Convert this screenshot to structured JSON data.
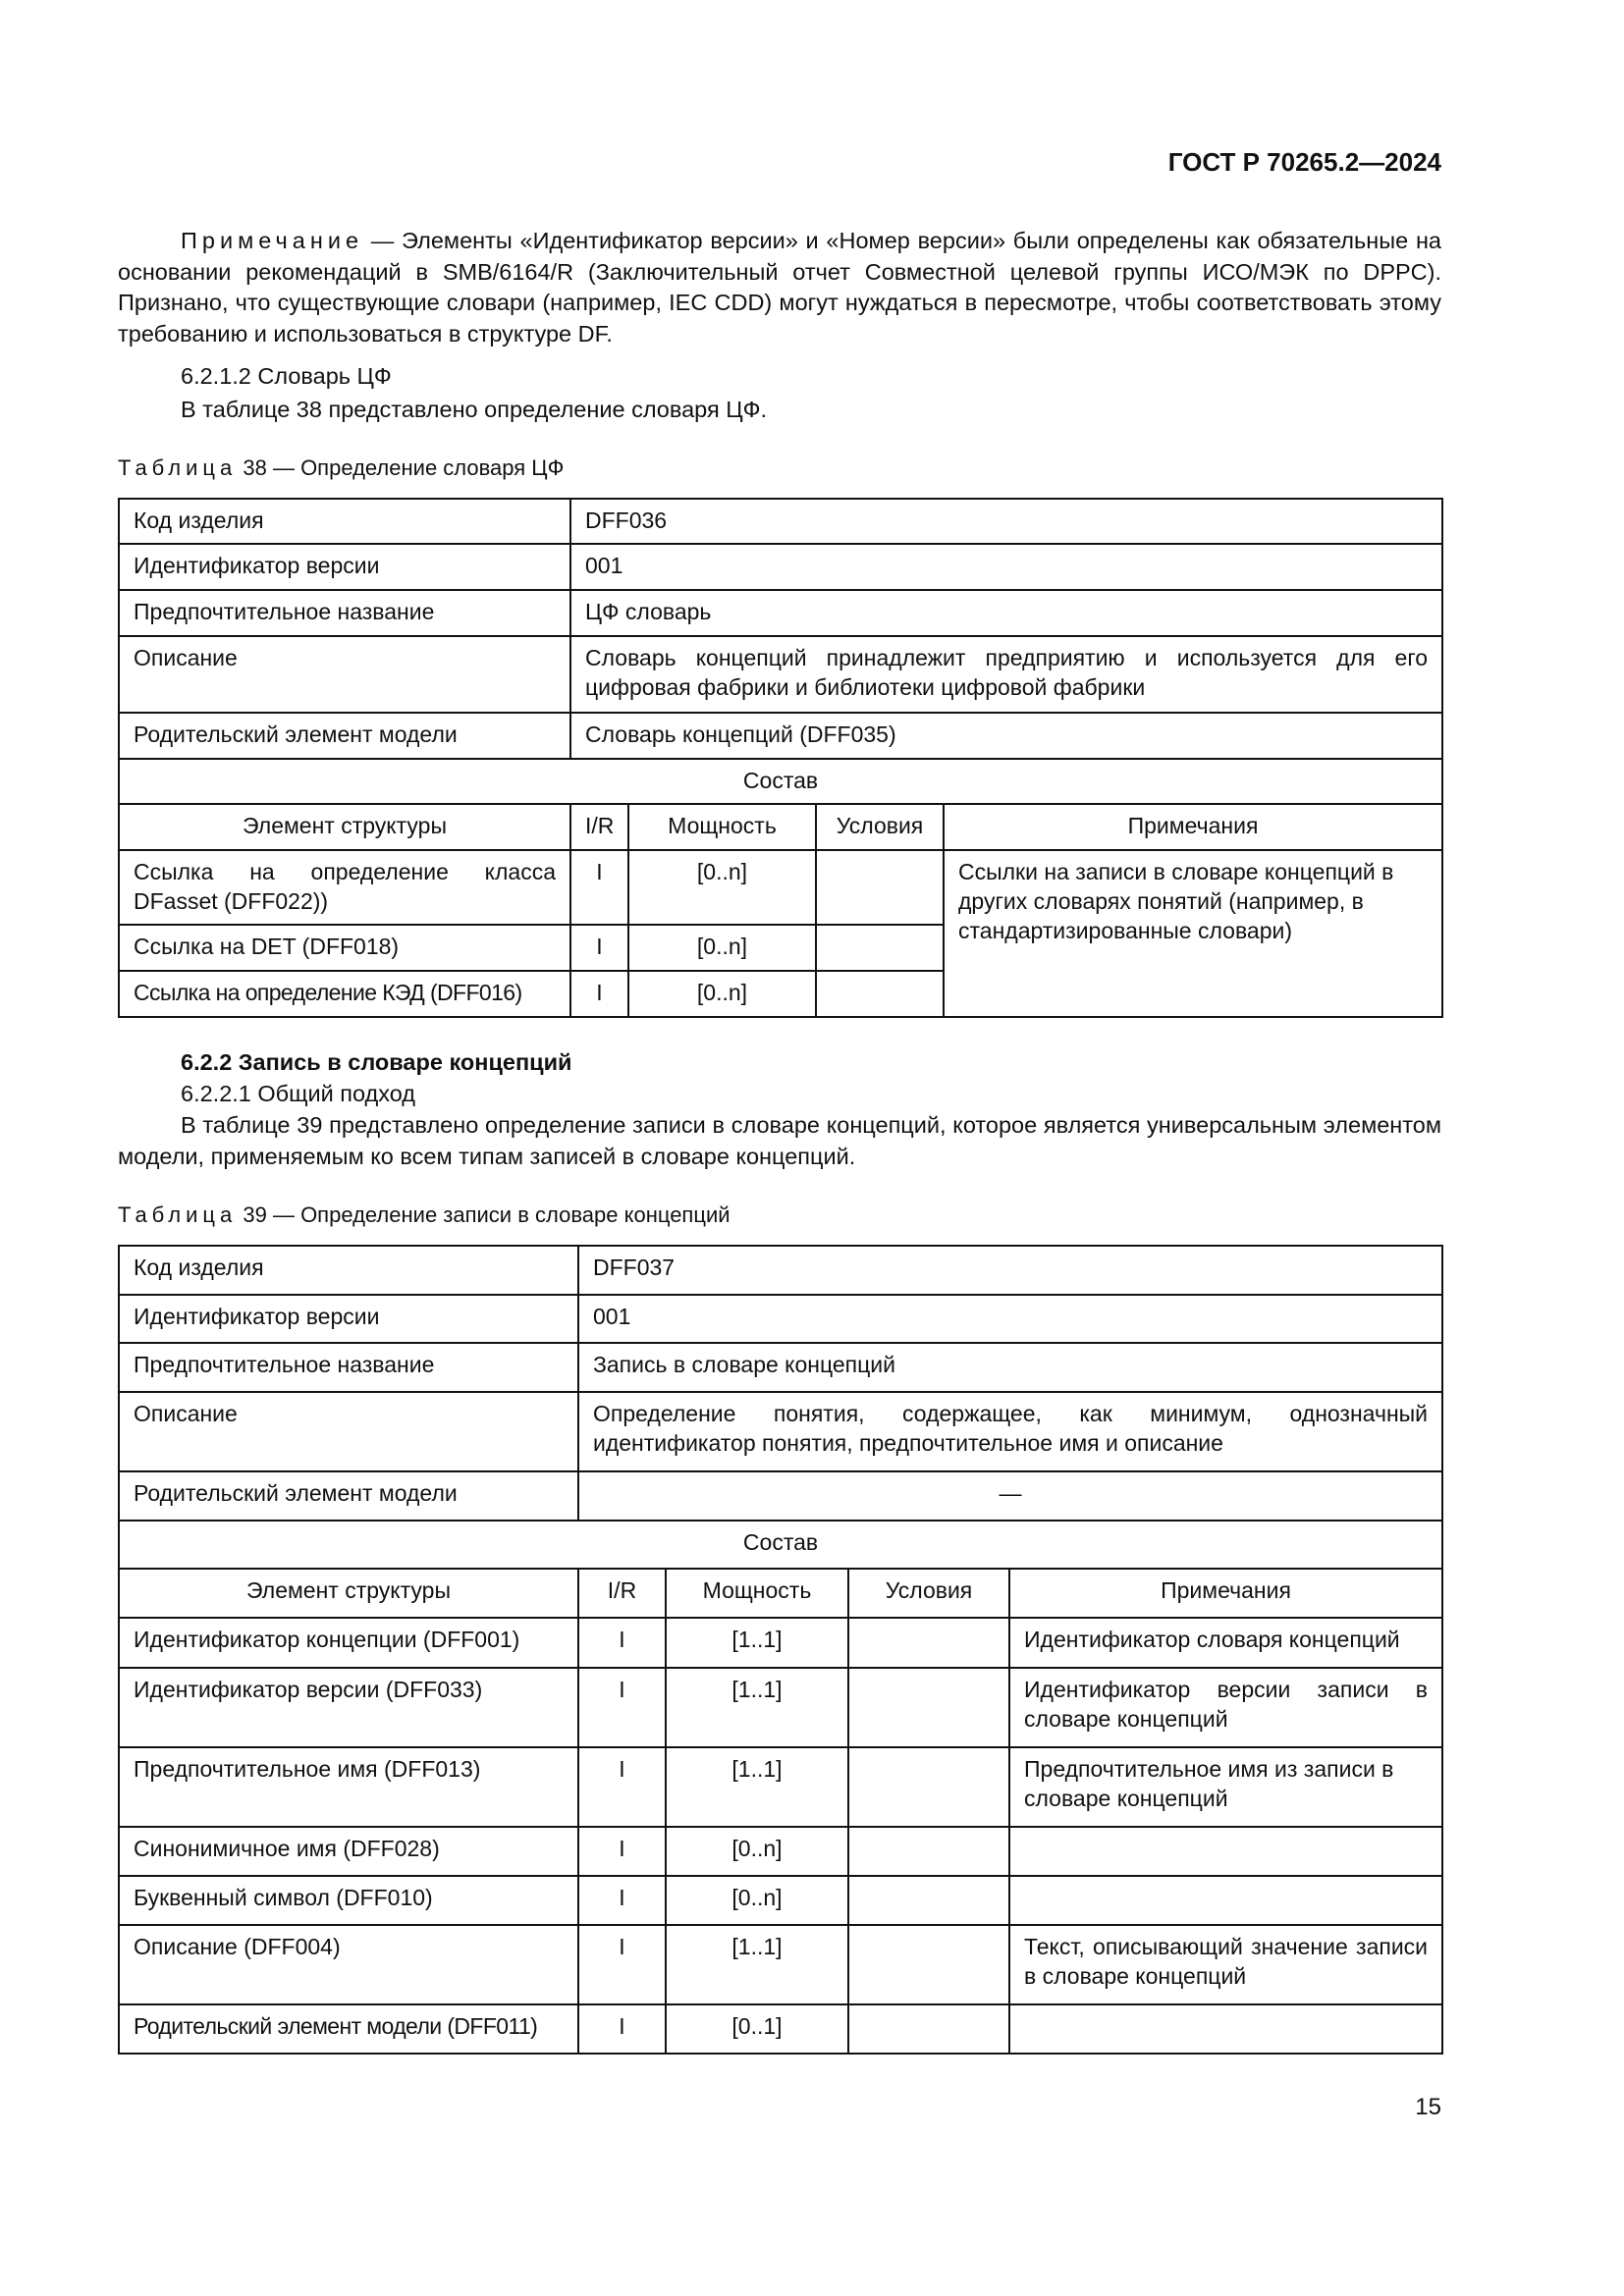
{
  "header": {
    "doc_id": "ГОСТ Р 70265.2—2024"
  },
  "note": {
    "label": "Примечание",
    "text": " — Элементы «Идентификатор версии» и «Номер версии» были определены как обязательные на основании рекомендаций в SMB/6164/R (Заключительный отчет Совместной целевой группы ИСО/МЭК по DPPC). Признано, что существующие словари (например, IEC CDD) могут нуждаться в пересмотре, чтобы соответствовать этому требованию и использоваться в структуре DF."
  },
  "section_6212": {
    "heading": "6.2.1.2 Словарь ЦФ",
    "text": "В таблице 38 представлено определение словаря ЦФ."
  },
  "table38": {
    "caption_label": "Таблица",
    "caption": " 38 — Определение словаря ЦФ",
    "props": [
      {
        "k": "Код изделия",
        "v": "DFF036"
      },
      {
        "k": "Идентификатор версии",
        "v": "001"
      },
      {
        "k": "Предпочтительное название",
        "v": "ЦФ словарь"
      },
      {
        "k": "Описание",
        "v": "Словарь концепций принадлежит предприятию и используется для его цифровая фабрики и библиотеки цифровой фабрики"
      },
      {
        "k": "Родительский элемент модели",
        "v": "Словарь концепций (DFF035)"
      }
    ],
    "composition": "Состав",
    "columns": [
      "Элемент структуры",
      "I/R",
      "Мощность",
      "Условия",
      "Примечания"
    ],
    "rows": [
      {
        "el": "Ссылка на определение класса DFasset (DFF022))",
        "ir": "I",
        "m": "[0..n]",
        "u": ""
      },
      {
        "el": "Ссылка на DET (DFF018)",
        "ir": "I",
        "m": "[0..n]",
        "u": ""
      },
      {
        "el": "Ссылка на определение КЭД (DFF016)",
        "ir": "I",
        "m": "[0..n]",
        "u": ""
      }
    ],
    "shared_note": "Ссылки на записи в словаре концепций в других словарях понятий (например, в стандартизированные словари)"
  },
  "section_622": {
    "heading": "6.2.2 Запись в словаре концепций",
    "sub": "6.2.2.1 Общий подход",
    "text": "В таблице 39 представлено определение записи в словаре концепций, которое является универсальным элементом модели, применяемым ко всем типам записей в словаре концепций."
  },
  "table39": {
    "caption_label": "Таблица",
    "caption": " 39 — Определение записи в словаре концепций",
    "props": [
      {
        "k": "Код изделия",
        "v": "DFF037"
      },
      {
        "k": "Идентификатор версии",
        "v": "001"
      },
      {
        "k": "Предпочтительное название",
        "v": "Запись в словаре концепций"
      },
      {
        "k": "Описание",
        "v": "Определение понятия, содержащее, как минимум, однозначный идентификатор понятия, предпочтительное имя и описание"
      },
      {
        "k": "Родительский элемент модели",
        "v": "—"
      }
    ],
    "composition": "Состав",
    "columns": [
      "Элемент структуры",
      "I/R",
      "Мощность",
      "Условия",
      "Примечания"
    ],
    "rows": [
      {
        "el": "Идентификатор концепции (DFF001)",
        "ir": "I",
        "m": "[1..1]",
        "u": "",
        "n": "Идентификатор словаря концепций"
      },
      {
        "el": "Идентификатор версии (DFF033)",
        "ir": "I",
        "m": "[1..1]",
        "u": "",
        "n": "Идентификатор версии записи в словаре концепций"
      },
      {
        "el": "Предпочтительное имя (DFF013)",
        "ir": "I",
        "m": "[1..1]",
        "u": "",
        "n": "Предпочтительное имя из записи в словаре концепций"
      },
      {
        "el": "Синонимичное имя (DFF028)",
        "ir": "I",
        "m": "[0..n]",
        "u": "",
        "n": ""
      },
      {
        "el": "Буквенный символ (DFF010)",
        "ir": "I",
        "m": "[0..n]",
        "u": "",
        "n": ""
      },
      {
        "el": "Описание (DFF004)",
        "ir": "I",
        "m": "[1..1]",
        "u": "",
        "n": "Текст, описывающий значение записи в словаре концепций"
      },
      {
        "el": "Родительский элемент модели (DFF011)",
        "ir": "I",
        "m": "[0..1]",
        "u": "",
        "n": ""
      }
    ]
  },
  "footer": {
    "page_number": "15"
  }
}
